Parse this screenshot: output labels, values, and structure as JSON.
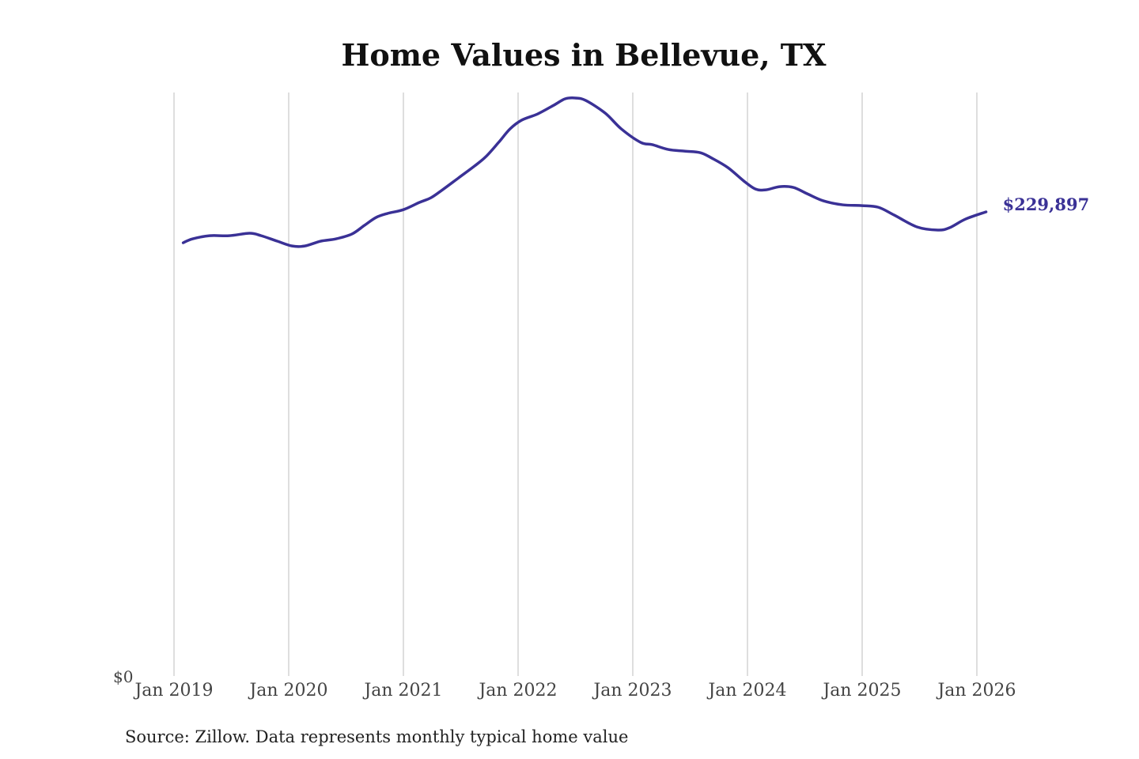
{
  "chart_data": {
    "type": "line",
    "title": "Home Values in Bellevue, TX",
    "xlabel": "",
    "ylabel": "",
    "source": "Source: Zillow. Data represents monthly typical home value",
    "x_ticks": [
      "Jan 2019",
      "Jan 2020",
      "Jan 2021",
      "Jan 2022",
      "Jan 2023",
      "Jan 2024",
      "Jan 2025",
      "Jan 2026"
    ],
    "x_tick_values": [
      2019,
      2020,
      2021,
      2022,
      2023,
      2024,
      2025,
      2026
    ],
    "y_ticks": [
      "$0"
    ],
    "ylim": [
      0,
      295000
    ],
    "xlim": [
      2019,
      2026.3
    ],
    "grid": "vertical",
    "line_color": "#3a3196",
    "end_label": "$229,897",
    "series": [
      {
        "name": "Typical home value",
        "x": [
          2019.08,
          2019.16,
          2019.31,
          2019.48,
          2019.66,
          2019.76,
          2019.9,
          2020.03,
          2020.14,
          2020.28,
          2020.41,
          2020.55,
          2020.66,
          2020.76,
          2020.86,
          2021.0,
          2021.14,
          2021.24,
          2021.34,
          2021.48,
          2021.62,
          2021.72,
          2021.83,
          2021.93,
          2022.03,
          2022.17,
          2022.31,
          2022.41,
          2022.5,
          2022.59,
          2022.76,
          2022.9,
          2023.07,
          2023.17,
          2023.31,
          2023.45,
          2023.59,
          2023.69,
          2023.83,
          2023.97,
          2024.07,
          2024.16,
          2024.28,
          2024.4,
          2024.52,
          2024.66,
          2024.83,
          2025.0,
          2025.14,
          2025.28,
          2025.48,
          2025.66,
          2025.76,
          2025.9,
          2026.08
        ],
        "values": [
          214600,
          216500,
          218100,
          218100,
          219300,
          218100,
          215400,
          213000,
          213000,
          215400,
          216500,
          218900,
          223200,
          227100,
          229100,
          231000,
          234600,
          236900,
          240800,
          246700,
          252600,
          257300,
          264300,
          271000,
          275300,
          278400,
          282700,
          285900,
          286300,
          285100,
          278800,
          271000,
          264300,
          263200,
          260800,
          260000,
          259200,
          256500,
          251800,
          245100,
          241200,
          240800,
          242400,
          242000,
          238900,
          235400,
          233400,
          233000,
          232200,
          228300,
          222400,
          220900,
          222000,
          226300,
          229897
        ]
      }
    ]
  }
}
